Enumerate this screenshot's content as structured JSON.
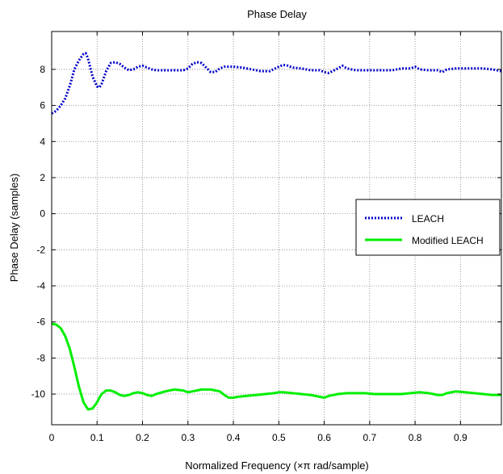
{
  "chart_data": {
    "type": "line",
    "title": "Phase Delay",
    "xlabel": "Normalized Frequency  (×π rad/sample)",
    "ylabel": "Phase Delay (samples)",
    "xlim": [
      0,
      0.99
    ],
    "ylim": [
      -11.7,
      10.1
    ],
    "xticks": [
      0,
      0.1,
      0.2,
      0.3,
      0.4,
      0.5,
      0.6,
      0.7,
      0.8,
      0.9
    ],
    "xtick_labels": [
      "0",
      "0.1",
      "0.2",
      "0.3",
      "0.4",
      "0.5",
      "0.6",
      "0.7",
      "0.8",
      "0.9"
    ],
    "yticks": [
      8,
      6,
      4,
      2,
      0,
      -2,
      -4,
      -6,
      -8,
      -10
    ],
    "ytick_labels": [
      "8",
      "6",
      "4",
      "2",
      "0",
      "-2",
      "-4",
      "-6",
      "-8",
      "-10"
    ],
    "grid": true,
    "legend_position": "right",
    "series": [
      {
        "name": "LEACH",
        "color": "#0000cc",
        "style": "dotted",
        "x": [
          0,
          0.01,
          0.02,
          0.03,
          0.04,
          0.05,
          0.06,
          0.07,
          0.075,
          0.08,
          0.09,
          0.1,
          0.105,
          0.11,
          0.12,
          0.13,
          0.14,
          0.15,
          0.16,
          0.17,
          0.18,
          0.19,
          0.2,
          0.21,
          0.22,
          0.23,
          0.25,
          0.27,
          0.29,
          0.3,
          0.31,
          0.32,
          0.33,
          0.34,
          0.35,
          0.36,
          0.37,
          0.38,
          0.39,
          0.4,
          0.42,
          0.44,
          0.46,
          0.48,
          0.5,
          0.51,
          0.52,
          0.53,
          0.55,
          0.57,
          0.59,
          0.6,
          0.61,
          0.63,
          0.64,
          0.65,
          0.67,
          0.69,
          0.71,
          0.73,
          0.75,
          0.77,
          0.79,
          0.8,
          0.81,
          0.83,
          0.85,
          0.86,
          0.87,
          0.89,
          0.91,
          0.93,
          0.95,
          0.97,
          0.99
        ],
        "y": [
          5.55,
          5.7,
          6.0,
          6.4,
          7.1,
          8.0,
          8.5,
          8.85,
          8.9,
          8.6,
          7.6,
          7.05,
          7.0,
          7.2,
          7.9,
          8.35,
          8.4,
          8.3,
          8.1,
          7.95,
          8.0,
          8.15,
          8.2,
          8.1,
          8.0,
          7.95,
          7.95,
          7.95,
          7.95,
          8.05,
          8.3,
          8.4,
          8.35,
          8.1,
          7.85,
          7.85,
          8.05,
          8.15,
          8.15,
          8.15,
          8.1,
          8.0,
          7.9,
          7.9,
          8.15,
          8.25,
          8.2,
          8.1,
          8.05,
          7.95,
          7.95,
          7.85,
          7.8,
          8.05,
          8.2,
          8.05,
          7.95,
          7.95,
          7.95,
          7.95,
          7.95,
          8.05,
          8.05,
          8.15,
          8.0,
          7.95,
          7.95,
          7.85,
          8.0,
          8.05,
          8.05,
          8.05,
          8.05,
          8.0,
          7.9
        ]
      },
      {
        "name": "Modified LEACH",
        "color": "#00ee00",
        "style": "solid",
        "x": [
          0,
          0.01,
          0.02,
          0.03,
          0.04,
          0.05,
          0.06,
          0.07,
          0.08,
          0.09,
          0.1,
          0.105,
          0.11,
          0.12,
          0.13,
          0.14,
          0.15,
          0.16,
          0.17,
          0.18,
          0.19,
          0.2,
          0.21,
          0.22,
          0.23,
          0.25,
          0.27,
          0.29,
          0.3,
          0.31,
          0.33,
          0.35,
          0.37,
          0.38,
          0.39,
          0.4,
          0.41,
          0.43,
          0.45,
          0.47,
          0.49,
          0.5,
          0.51,
          0.53,
          0.55,
          0.57,
          0.59,
          0.6,
          0.61,
          0.63,
          0.65,
          0.67,
          0.69,
          0.71,
          0.73,
          0.75,
          0.77,
          0.79,
          0.81,
          0.83,
          0.85,
          0.86,
          0.87,
          0.89,
          0.91,
          0.93,
          0.95,
          0.97,
          0.99
        ],
        "y": [
          -6.1,
          -6.15,
          -6.35,
          -6.8,
          -7.5,
          -8.5,
          -9.6,
          -10.45,
          -10.85,
          -10.8,
          -10.45,
          -10.2,
          -10.0,
          -9.8,
          -9.8,
          -9.9,
          -10.05,
          -10.1,
          -10.05,
          -9.95,
          -9.9,
          -9.95,
          -10.05,
          -10.1,
          -10.0,
          -9.85,
          -9.75,
          -9.8,
          -9.9,
          -9.85,
          -9.75,
          -9.75,
          -9.85,
          -10.05,
          -10.2,
          -10.2,
          -10.15,
          -10.1,
          -10.05,
          -10.0,
          -9.95,
          -9.9,
          -9.9,
          -9.95,
          -10.0,
          -10.05,
          -10.15,
          -10.2,
          -10.1,
          -10.0,
          -9.95,
          -9.95,
          -9.95,
          -10.0,
          -10.0,
          -10.0,
          -10.0,
          -9.95,
          -9.9,
          -9.95,
          -10.05,
          -10.05,
          -9.95,
          -9.85,
          -9.9,
          -9.95,
          -10.0,
          -10.05,
          -10.05
        ]
      }
    ]
  }
}
